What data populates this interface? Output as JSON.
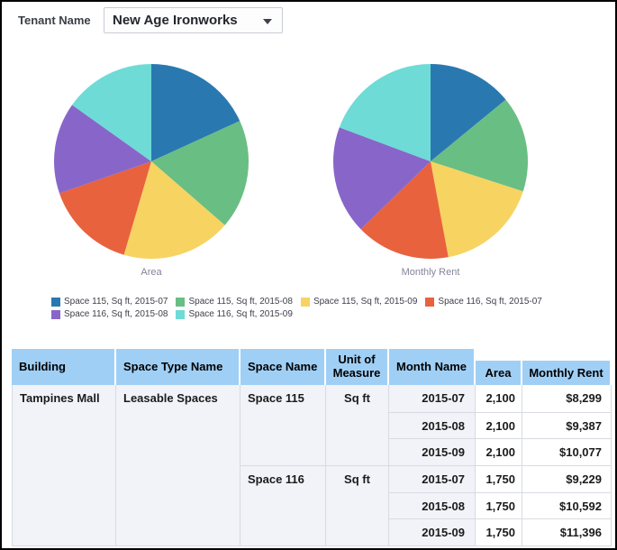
{
  "controls": {
    "tenant_label": "Tenant Name",
    "tenant_value": "New Age Ironworks"
  },
  "chart_data": [
    {
      "type": "pie",
      "title": "Area",
      "categories": [
        "Space 115, Sq ft, 2015-07",
        "Space 115, Sq ft, 2015-08",
        "Space 115, Sq ft, 2015-09",
        "Space 116, Sq ft, 2015-07",
        "Space 116, Sq ft, 2015-08",
        "Space 116, Sq ft, 2015-09"
      ],
      "values": [
        2100,
        2100,
        2100,
        1750,
        1750,
        1750
      ],
      "colors": [
        "#2979b0",
        "#69be83",
        "#f7d361",
        "#e8623e",
        "#8866c9",
        "#6edbd6"
      ],
      "legend_position": "bottom-shared",
      "start_angle": "top",
      "direction": "clockwise"
    },
    {
      "type": "pie",
      "title": "Monthly Rent",
      "categories": [
        "Space 115, Sq ft, 2015-07",
        "Space 115, Sq ft, 2015-08",
        "Space 115, Sq ft, 2015-09",
        "Space 116, Sq ft, 2015-07",
        "Space 116, Sq ft, 2015-08",
        "Space 116, Sq ft, 2015-09"
      ],
      "values": [
        8299,
        9387,
        10077,
        9229,
        10592,
        11396
      ],
      "colors": [
        "#2979b0",
        "#69be83",
        "#f7d361",
        "#e8623e",
        "#8866c9",
        "#6edbd6"
      ],
      "legend_position": "bottom-shared",
      "start_angle": "top",
      "direction": "clockwise"
    }
  ],
  "table": {
    "headers": [
      "Building",
      "Space Type Name",
      "Space Name",
      "Unit of Measure",
      "Month Name",
      "Area",
      "Monthly Rent"
    ],
    "building": "Tampines Mall",
    "space_type": "Leasable Spaces",
    "spaces": [
      {
        "name": "Space 115",
        "unit": "Sq ft",
        "rows": [
          {
            "month": "2015-07",
            "area": "2,100",
            "rent": "$8,299"
          },
          {
            "month": "2015-08",
            "area": "2,100",
            "rent": "$9,387"
          },
          {
            "month": "2015-09",
            "area": "2,100",
            "rent": "$10,077"
          }
        ]
      },
      {
        "name": "Space 116",
        "unit": "Sq ft",
        "rows": [
          {
            "month": "2015-07",
            "area": "1,750",
            "rent": "$9,229"
          },
          {
            "month": "2015-08",
            "area": "1,750",
            "rent": "$10,592"
          },
          {
            "month": "2015-09",
            "area": "1,750",
            "rent": "$11,396"
          }
        ]
      }
    ]
  }
}
